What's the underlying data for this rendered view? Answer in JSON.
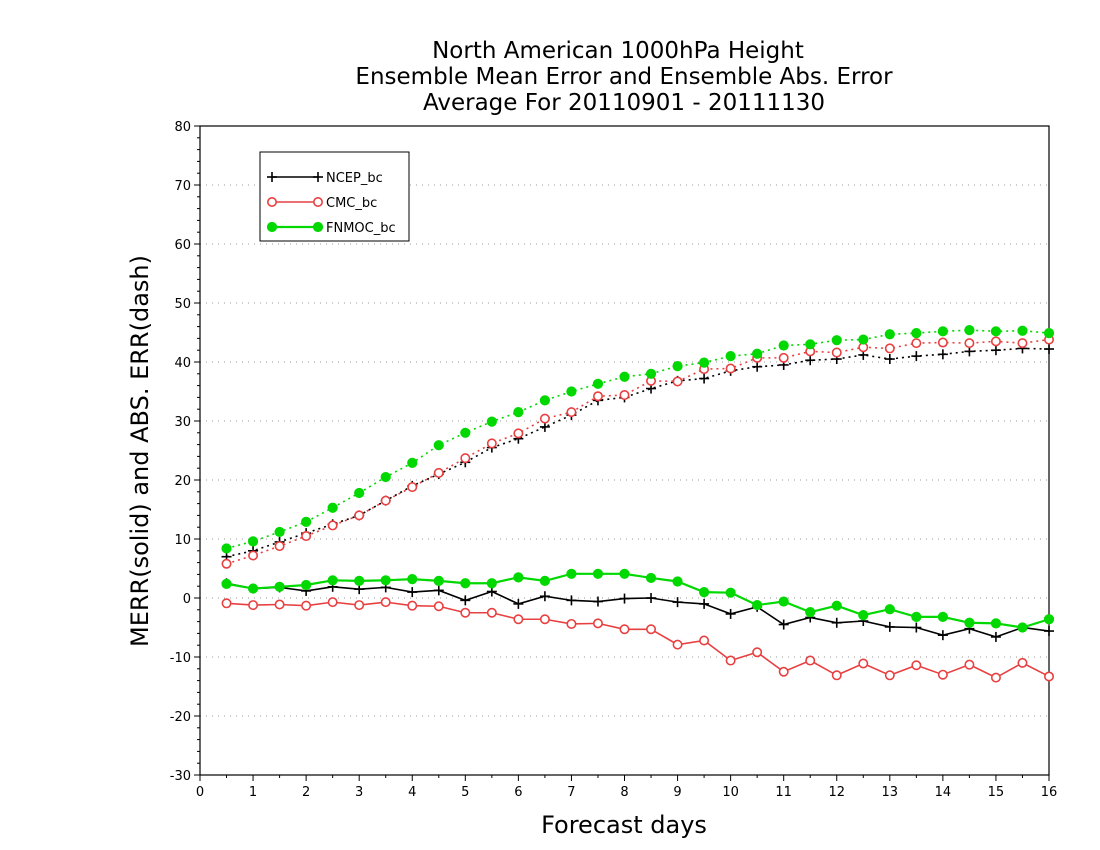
{
  "chart_data": {
    "type": "line",
    "title": [
      "North American 1000hPa Height",
      "Ensemble Mean Error and Ensemble Abs. Error",
      "Average For 20110901 - 20111130"
    ],
    "xlabel": "Forecast days",
    "ylabel": "MERR(solid) and ABS. ERR(dash)",
    "xlim": [
      0,
      16
    ],
    "ylim": [
      -30,
      80
    ],
    "xticks": [
      "0",
      "1",
      "2",
      "3",
      "4",
      "5",
      "6",
      "7",
      "8",
      "9",
      "10",
      "11",
      "12",
      "13",
      "14",
      "15",
      "16"
    ],
    "yticks": [
      "-30",
      "-20",
      "-10",
      "0",
      "10",
      "20",
      "30",
      "40",
      "50",
      "60",
      "70",
      "80"
    ],
    "grid": "horizontal-dotted",
    "legend_position": "top-left",
    "x": [
      0.5,
      1,
      1.5,
      2,
      2.5,
      3,
      3.5,
      4,
      4.5,
      5,
      5.5,
      6,
      6.5,
      7,
      7.5,
      8,
      8.5,
      9,
      9.5,
      10,
      10.5,
      11,
      11.5,
      12,
      12.5,
      13,
      13.5,
      14,
      14.5,
      15,
      15.5,
      16
    ],
    "series": [
      {
        "name": "NCEP_bc",
        "color": "#000000",
        "marker": "plus",
        "merr": [
          2.5,
          1.6,
          1.8,
          1.2,
          1.9,
          1.5,
          1.8,
          1.0,
          1.3,
          -0.4,
          1.1,
          -1.0,
          0.3,
          -0.4,
          -0.6,
          -0.1,
          0.0,
          -0.7,
          -1.0,
          -2.7,
          -1.5,
          -4.5,
          -3.3,
          -4.2,
          -3.9,
          -4.9,
          -5.0,
          -6.3,
          -5.2,
          -6.6,
          -5.0,
          -5.6
        ],
        "abs_err": [
          7.0,
          8.0,
          9.5,
          11.0,
          12.5,
          14.0,
          16.5,
          19.0,
          21.0,
          23.0,
          25.5,
          27.0,
          29.0,
          31.0,
          33.5,
          34.0,
          35.5,
          36.8,
          37.2,
          38.5,
          39.2,
          39.5,
          40.3,
          40.5,
          41.2,
          40.5,
          41.0,
          41.3,
          41.8,
          42.0,
          42.3,
          42.2
        ]
      },
      {
        "name": "CMC_bc",
        "color": "#e84040",
        "marker": "open-circle",
        "merr": [
          -0.9,
          -1.2,
          -1.1,
          -1.3,
          -0.7,
          -1.2,
          -0.7,
          -1.3,
          -1.4,
          -2.5,
          -2.5,
          -3.6,
          -3.6,
          -4.4,
          -4.3,
          -5.3,
          -5.3,
          -7.9,
          -7.2,
          -10.6,
          -9.2,
          -12.5,
          -10.6,
          -13.1,
          -11.1,
          -13.1,
          -11.4,
          -13.0,
          -11.3,
          -13.5,
          -11.0,
          -13.3
        ],
        "abs_err": [
          5.8,
          7.2,
          8.8,
          10.5,
          12.3,
          14.0,
          16.5,
          18.8,
          21.2,
          23.7,
          26.2,
          27.9,
          30.4,
          31.5,
          34.2,
          34.4,
          36.8,
          36.7,
          38.8,
          38.9,
          40.7,
          40.7,
          41.8,
          41.6,
          42.5,
          42.3,
          43.2,
          43.3,
          43.2,
          43.5,
          43.2,
          43.8
        ]
      },
      {
        "name": "FNMOC_bc",
        "color": "#00d800",
        "marker": "filled-circle",
        "merr": [
          2.4,
          1.6,
          1.9,
          2.2,
          3.0,
          2.9,
          3.0,
          3.2,
          2.9,
          2.5,
          2.5,
          3.5,
          2.9,
          4.1,
          4.1,
          4.1,
          3.4,
          2.8,
          1.0,
          0.9,
          -1.2,
          -0.6,
          -2.4,
          -1.3,
          -2.9,
          -1.9,
          -3.2,
          -3.2,
          -4.2,
          -4.3,
          -5.0,
          -3.6
        ],
        "abs_err": [
          8.4,
          9.6,
          11.2,
          12.9,
          15.3,
          17.8,
          20.5,
          22.9,
          25.9,
          28.0,
          29.9,
          31.5,
          33.5,
          35.0,
          36.3,
          37.5,
          38.0,
          39.3,
          39.9,
          41.0,
          41.4,
          42.8,
          43.0,
          43.7,
          43.8,
          44.7,
          44.9,
          45.2,
          45.4,
          45.2,
          45.3,
          44.9
        ]
      }
    ]
  }
}
